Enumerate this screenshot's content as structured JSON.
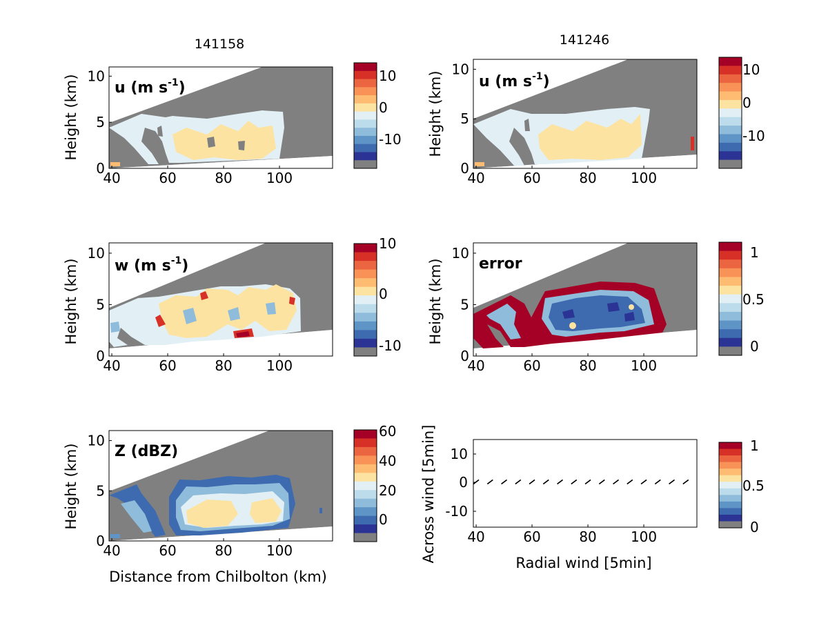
{
  "colors": {
    "palette": [
      "#2b3494",
      "#3e6bb0",
      "#5f94c6",
      "#8fbcdb",
      "#bcdceb",
      "#e2f0f6",
      "#fce3a1",
      "#fdbc72",
      "#f99257",
      "#ec6541",
      "#d73027",
      "#a50026"
    ],
    "nodata": "#808080",
    "background": "#ffffff"
  },
  "columns": {
    "left_title": "141158",
    "right_title": "141246"
  },
  "common": {
    "ylabel": "Height (km)",
    "xticks": [
      "40",
      "60",
      "80",
      "100"
    ],
    "yticks": [
      "0",
      "5",
      "10"
    ]
  },
  "panels": {
    "p1": {
      "label_main": "u (m s",
      "label_sup": "-1",
      "label_end": ")",
      "cbar_ticks": [
        "10",
        "0",
        "-10"
      ]
    },
    "p2": {
      "label_main": "u (m s",
      "label_sup": "-1",
      "label_end": ")",
      "cbar_ticks": [
        "10",
        "0",
        "-10"
      ]
    },
    "p3": {
      "label_main": "w (m s",
      "label_sup": "-1",
      "label_end": ")",
      "cbar_ticks": [
        "10",
        "0",
        "-10"
      ]
    },
    "p4": {
      "label_main": "error",
      "cbar_ticks": [
        "1",
        "0.5",
        "0"
      ]
    },
    "p5": {
      "label_main": "Z (dBZ)",
      "xlabel": "Distance from Chilbolton (km)",
      "cbar_ticks": [
        "60",
        "40",
        "20",
        "0"
      ]
    },
    "p6": {
      "xlabel": "Radial wind [5min]",
      "ylabel": "Across wind [5min]",
      "yticks": [
        "10",
        "0",
        "-10"
      ],
      "xticks": [
        "40",
        "60",
        "80",
        "100"
      ],
      "cbar_ticks": [
        "1",
        "0.5",
        "0"
      ]
    }
  },
  "chart_data": [
    {
      "type": "heatmap",
      "panel": "u (m s-1)",
      "time": "141158",
      "x_range": [
        39,
        119
      ],
      "y_range": [
        0,
        11
      ],
      "xlabel": "",
      "ylabel": "Height (km)",
      "colorbar_range": [
        -20,
        14
      ]
    },
    {
      "type": "heatmap",
      "panel": "u (m s-1)",
      "time": "141246",
      "x_range": [
        39,
        119
      ],
      "y_range": [
        0,
        11
      ],
      "xlabel": "",
      "ylabel": "Height (km)",
      "colorbar_range": [
        -20,
        14
      ]
    },
    {
      "type": "heatmap",
      "panel": "w (m s-1)",
      "time": "141158",
      "x_range": [
        39,
        119
      ],
      "y_range": [
        0,
        11
      ],
      "xlabel": "",
      "ylabel": "Height (km)",
      "colorbar_range": [
        -12,
        10
      ]
    },
    {
      "type": "heatmap",
      "panel": "error",
      "time": "141246",
      "x_range": [
        39,
        119
      ],
      "y_range": [
        0,
        11
      ],
      "xlabel": "",
      "ylabel": "Height (km)",
      "colorbar_range": [
        -0.05,
        1.05
      ]
    },
    {
      "type": "heatmap",
      "panel": "Z (dBZ)",
      "time": "141158",
      "x_range": [
        39,
        119
      ],
      "y_range": [
        0,
        11
      ],
      "xlabel": "Distance from Chilbolton (km)",
      "ylabel": "Height (km)",
      "colorbar_range": [
        -15,
        60
      ]
    },
    {
      "type": "scatter",
      "panel": "vectors",
      "x_range": [
        39,
        119
      ],
      "y_range": [
        -16,
        15
      ],
      "xlabel": "Radial wind [5min]",
      "ylabel": "Across wind [5min]",
      "x": [
        40,
        45,
        50,
        55,
        60,
        65,
        70,
        75,
        80,
        85,
        90,
        95,
        100,
        105,
        110,
        115
      ],
      "y": [
        0,
        0,
        0,
        0,
        0,
        0,
        0,
        0,
        0,
        0,
        0,
        0,
        0,
        0,
        0,
        0
      ]
    }
  ]
}
